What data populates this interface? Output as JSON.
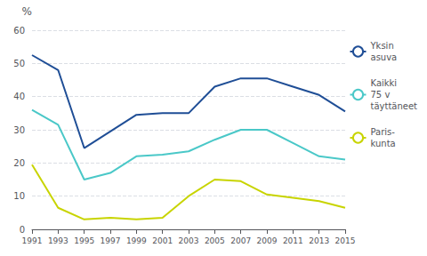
{
  "chart_data": {
    "type": "line",
    "ylabel": "%",
    "x": [
      1991,
      1993,
      1995,
      1997,
      1999,
      2001,
      2003,
      2005,
      2007,
      2009,
      2011,
      2013,
      2015
    ],
    "series": [
      {
        "name": "Yksin\nasuva",
        "color": "#1f4e96",
        "values": [
          52.5,
          48.0,
          24.5,
          29.5,
          34.5,
          35.0,
          35.0,
          43.0,
          45.5,
          45.5,
          43.0,
          40.5,
          35.5
        ]
      },
      {
        "name": "Kaikki\n75 v\ntäyttäneet",
        "color": "#4ac8c8",
        "values": [
          36.0,
          31.5,
          15.0,
          17.0,
          22.0,
          22.5,
          23.5,
          27.0,
          30.0,
          30.0,
          26.0,
          22.0,
          21.0
        ]
      },
      {
        "name": "Paris-\nkunta",
        "color": "#c8d400",
        "values": [
          19.5,
          6.5,
          3.0,
          3.5,
          3.0,
          3.5,
          10.0,
          15.0,
          14.5,
          10.5,
          9.5,
          8.5,
          6.5
        ]
      }
    ],
    "xlim": [
      1991,
      2015
    ],
    "xticks": [
      1991,
      1993,
      1995,
      1997,
      1999,
      2001,
      2003,
      2005,
      2007,
      2009,
      2011,
      2013,
      2015
    ],
    "ylim": [
      0,
      60
    ],
    "yticks": [
      0,
      10,
      20,
      30,
      40,
      50,
      60
    ],
    "grid": true,
    "legend": "right"
  }
}
